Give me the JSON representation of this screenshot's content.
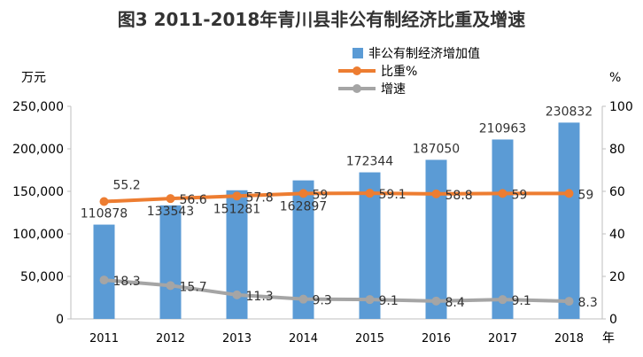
{
  "chart_data": {
    "type": "bar",
    "title": "图3  2011-2018年青川县非公有制经济比重及增速",
    "categories": [
      "2011",
      "2012",
      "2013",
      "2014",
      "2015",
      "2016",
      "2017",
      "2018"
    ],
    "xlabel": "年",
    "ylabel_left": "万元",
    "ylabel_right": "%",
    "ylim_left": [
      0,
      250000
    ],
    "ylim_right": [
      0,
      100
    ],
    "yticks_left": [
      "0",
      "50,000",
      "100,000",
      "150,000",
      "200,000",
      "250,000"
    ],
    "yticks_right": [
      "0",
      "20",
      "40",
      "60",
      "80",
      "100"
    ],
    "grid": false,
    "legend_position": "top-right",
    "series": [
      {
        "name": "非公有制经济增加值",
        "type": "bar",
        "axis": "left",
        "color": "#5b9bd5",
        "values": [
          110878,
          133543,
          151281,
          162897,
          172344,
          187050,
          210963,
          230832
        ],
        "labels": [
          "110878",
          "133543",
          "151281",
          "162897",
          "172344",
          "187050",
          "210963",
          "230832"
        ]
      },
      {
        "name": "比重%",
        "type": "line",
        "axis": "right",
        "color": "#ed7d31",
        "values": [
          55.2,
          56.6,
          57.8,
          59,
          59.1,
          58.8,
          59,
          59
        ],
        "labels": [
          "55.2",
          "56.6",
          "57.8",
          "59",
          "59.1",
          "58.8",
          "59",
          "59"
        ]
      },
      {
        "name": "增速",
        "type": "line",
        "axis": "right",
        "color": "#a5a5a5",
        "values": [
          18.3,
          15.7,
          11.3,
          9.3,
          9.1,
          8.4,
          9.1,
          8.3
        ],
        "labels": [
          "18.3",
          "15.7",
          "11.3",
          "9.3",
          "9.1",
          "8.4",
          "9.1",
          "8.3"
        ]
      }
    ]
  }
}
